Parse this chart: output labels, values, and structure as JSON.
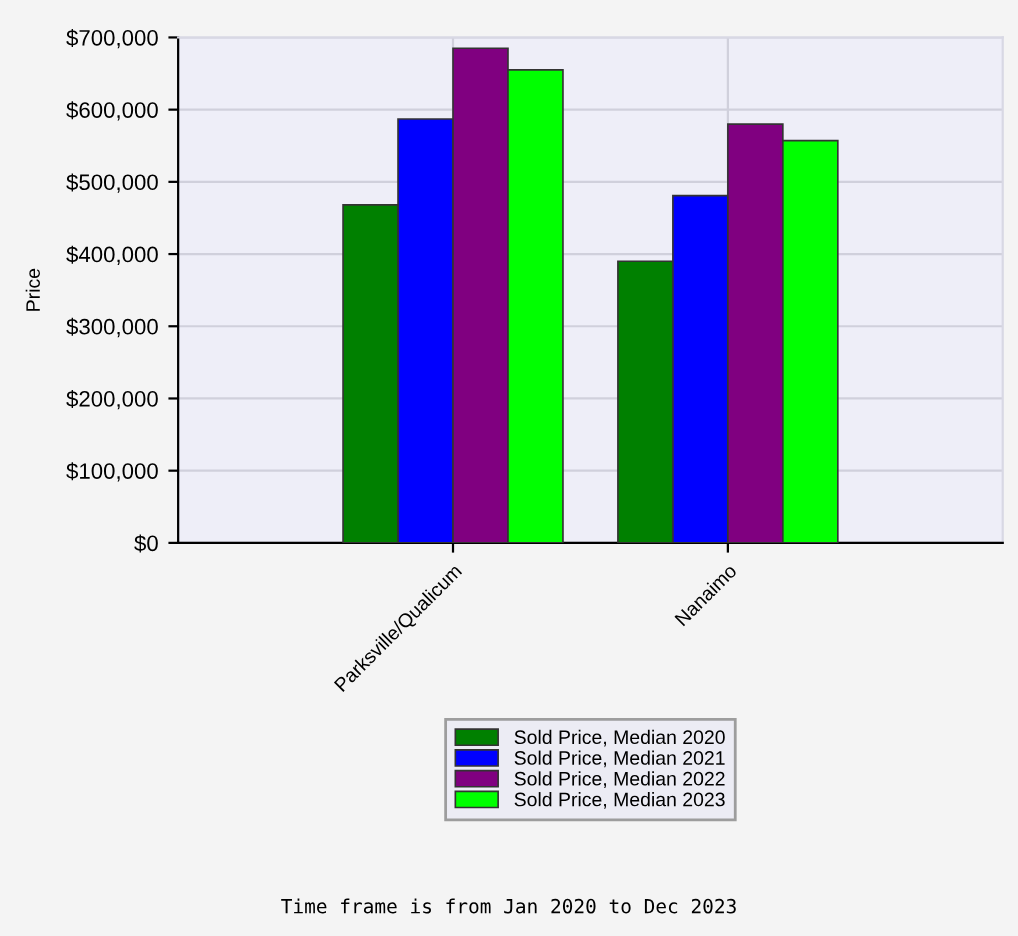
{
  "chart_data": {
    "type": "bar",
    "ylabel": "Price",
    "categories": [
      "Parksville/Qualicum",
      "Nanaimo"
    ],
    "series": [
      {
        "name": "Sold Price, Median 2020",
        "color": "#008000",
        "values": [
          468000,
          390000
        ]
      },
      {
        "name": "Sold Price, Median 2021",
        "color": "#0000ff",
        "values": [
          587000,
          481000
        ]
      },
      {
        "name": "Sold Price, Median 2022",
        "color": "#800080",
        "values": [
          685000,
          580000
        ]
      },
      {
        "name": "Sold Price, Median 2023",
        "color": "#00ff00",
        "values": [
          655000,
          557000
        ]
      }
    ],
    "ylim": [
      0,
      700000
    ],
    "yticks": [
      {
        "value": 0,
        "label": "$0"
      },
      {
        "value": 100000,
        "label": "$100,000"
      },
      {
        "value": 200000,
        "label": "$200,000"
      },
      {
        "value": 300000,
        "label": "$300,000"
      },
      {
        "value": 400000,
        "label": "$400,000"
      },
      {
        "value": 500000,
        "label": "$500,000"
      },
      {
        "value": 600000,
        "label": "$600,000"
      },
      {
        "value": 700000,
        "label": "$700,000"
      }
    ],
    "grid": true,
    "legend": "bottom",
    "annotations": [
      "Time frame is from Jan 2020 to Dec 2023"
    ]
  }
}
